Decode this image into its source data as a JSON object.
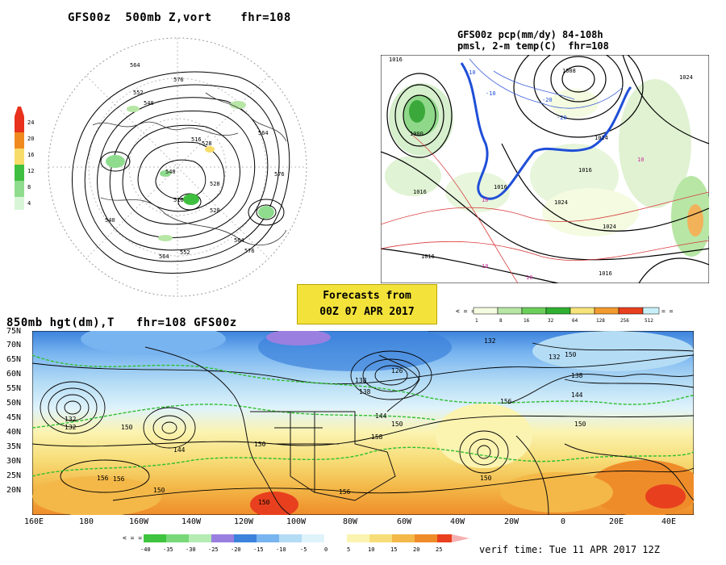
{
  "panel_500mb": {
    "title": "GFS00z  500mb Z,vort    fhr=108",
    "colorbar_labels": [
      "24",
      "20",
      "16",
      "12",
      "8",
      "4"
    ],
    "colorbar_colors": [
      "#e8321e",
      "#f08a1e",
      "#f7dc6a",
      "#3fbf3f",
      "#8fdc8f",
      "#d8f5d8"
    ],
    "contour_labels": [
      "576",
      "564",
      "552",
      "540",
      "528",
      "516",
      "564",
      "540",
      "576",
      "528",
      "564",
      "576",
      "552",
      "564",
      "540",
      "516",
      "528"
    ]
  },
  "panel_precip": {
    "title_line1": "GFS00z pcp(mm/dy) 84-108h",
    "title_line2": "pmsl, 2-m temp(C)  fhr=108",
    "colorbar_labels": [
      "1",
      "8",
      "16",
      "32",
      "64",
      "128",
      "256",
      "512"
    ],
    "colorbar_colors": [
      "#f4fbe0",
      "#b7e6a5",
      "#6ccf5a",
      "#30b030",
      "#f6e37a",
      "#f29a2e",
      "#e8401e",
      "#c8f0f8"
    ],
    "pressure_labels": [
      "1016",
      "1024",
      "1008",
      "1000",
      "1016",
      "1016",
      "1024",
      "1016",
      "1024",
      "1016",
      "1016",
      "1024"
    ],
    "temp_labels": [
      "-10",
      "-20",
      "-10",
      "-20",
      "10",
      "10",
      "10",
      "10"
    ]
  },
  "banner": {
    "line1": "Forecasts from",
    "line2": "00Z 07 APR 2017"
  },
  "panel_850mb": {
    "title": "850mb hgt(dm),T   fhr=108 GFS00z",
    "lat_labels": [
      "75N",
      "70N",
      "65N",
      "60N",
      "55N",
      "50N",
      "45N",
      "40N",
      "35N",
      "30N",
      "25N",
      "20N"
    ],
    "lon_labels": [
      "160E",
      "180",
      "160W",
      "140W",
      "120W",
      "100W",
      "80W",
      "60W",
      "40W",
      "20W",
      "0",
      "20E",
      "40E"
    ],
    "height_labels": [
      "132",
      "132",
      "150",
      "144",
      "156",
      "150",
      "156",
      "150",
      "138",
      "126",
      "132",
      "138",
      "144",
      "150",
      "158",
      "150",
      "156",
      "150",
      "150",
      "132",
      "138",
      "144",
      "150",
      "156"
    ],
    "colorbar_labels": [
      "-40",
      "-35",
      "-30",
      "-25",
      "-20",
      "-15",
      "-10",
      "-5",
      "0",
      "5",
      "10",
      "15",
      "20",
      "25"
    ],
    "colorbar_colors": [
      "#3ec43e",
      "#78d878",
      "#b4ecb4",
      "#9a7fe0",
      "#3c82dc",
      "#78b4f0",
      "#b4dcf5",
      "#dff3fb",
      "#ffffff",
      "#fbf3b0",
      "#f7dd78",
      "#f3b848",
      "#ef8c2a",
      "#e8401e"
    ],
    "verif_time": "verif time: Tue 11 APR 2017 12Z"
  }
}
